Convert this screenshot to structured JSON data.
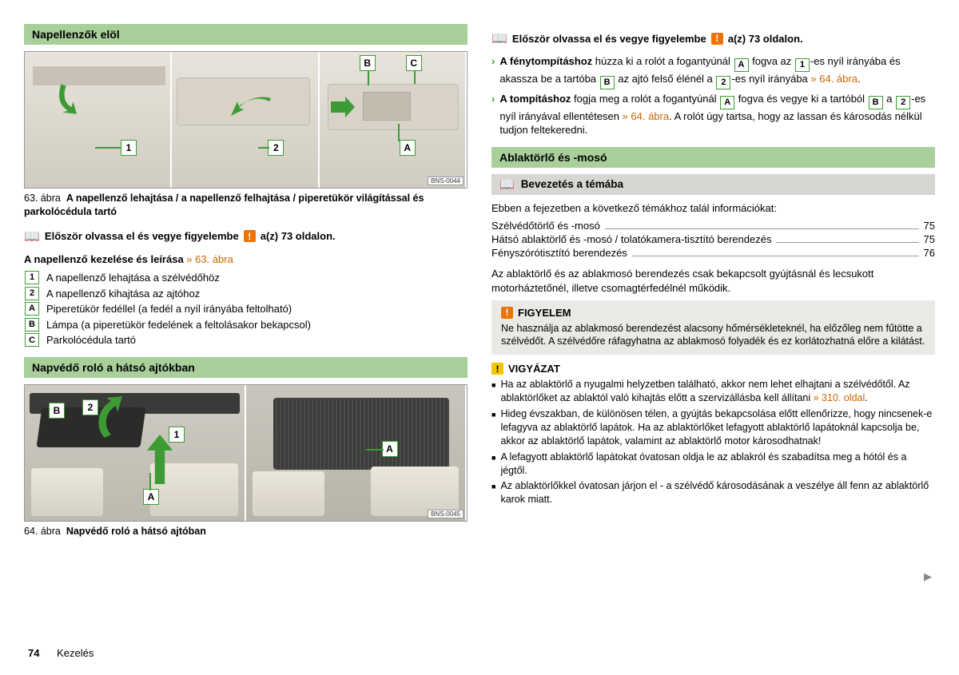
{
  "colors": {
    "section_bg": "#a9cf9b",
    "subhead_bg": "#d7d6d3",
    "green": "#3d9b35",
    "orange_warn": "#ec7404",
    "yellow_caution": "#f3c500",
    "orange_ref": "#cc6600",
    "alert_bg": "#ebe9e5"
  },
  "left": {
    "section1_title": "Napellenzők elöl",
    "fig1": {
      "code": "BNS-0044",
      "callouts_p1": [
        "1"
      ],
      "callouts_p2": [
        "2"
      ],
      "callouts_p3": [
        "B",
        "C",
        "A"
      ]
    },
    "fig1_caption_prefix": "63. ábra",
    "fig1_caption_body": "A napellenző lehajtása / a napellenző felhajtása / piperetükör világítással és parkolócédula tartó",
    "read_first": {
      "prefix": "Először olvassa el és vegye figyelembe",
      "suffix": "a(z) 73 oldalon."
    },
    "legend_title_plain": "A napellenző kezelése és leírása ",
    "legend_title_ref": "» 63. ábra",
    "legend": [
      {
        "k": "1",
        "t": "A napellenző lehajtása a szélvédőhöz"
      },
      {
        "k": "2",
        "t": "A napellenző kihajtása az ajtóhoz"
      },
      {
        "k": "A",
        "t": "Piperetükör fedéllel (a fedél a nyíl irányába feltolható)"
      },
      {
        "k": "B",
        "t": "Lámpa (a piperetükör fedelének a feltolásakor bekapcsol)"
      },
      {
        "k": "C",
        "t": "Parkolócédula tartó"
      }
    ],
    "section2_title": "Napvédő roló a hátsó ajtókban",
    "fig2": {
      "code": "BNS-0045",
      "callouts_left": [
        "B",
        "2",
        "1",
        "A"
      ],
      "callouts_right": [
        "A"
      ]
    },
    "fig2_caption_prefix": "64. ábra",
    "fig2_caption_body": "Napvédő roló a hátsó ajtóban"
  },
  "right": {
    "read_first": {
      "prefix": "Először olvassa el és vegye figyelembe",
      "suffix": "a(z) 73 oldalon."
    },
    "bullets": [
      {
        "parts": [
          {
            "t": "A ",
            "b": true
          },
          {
            "t": "fénytompításhoz",
            "b": true
          },
          {
            "t": " húzza ki a rolót a fogantyúnál "
          },
          {
            "key": "A"
          },
          {
            "t": " fogva az "
          },
          {
            "key": "1"
          },
          {
            "t": "-es nyíl irányába és akassza be a tartóba "
          },
          {
            "key": "B"
          },
          {
            "t": " az ajtó felső élénél a "
          },
          {
            "key": "2"
          },
          {
            "t": "-es nyíl irányába "
          },
          {
            "ref": "» 64. ábra"
          },
          {
            "t": "."
          }
        ]
      },
      {
        "parts": [
          {
            "t": "A ",
            "b": true
          },
          {
            "t": "tompításhoz",
            "b": true
          },
          {
            "t": " fogja meg a rolót a fogantyúnál "
          },
          {
            "key": "A"
          },
          {
            "t": " fogva és vegye ki a tartóból "
          },
          {
            "key": "B"
          },
          {
            "t": " a "
          },
          {
            "key": "2"
          },
          {
            "t": "-es nyíl irányával ellentétesen "
          },
          {
            "ref": "» 64. ábra"
          },
          {
            "t": ". A rolót úgy tartsa, hogy az lassan és károsodás nélkül tudjon feltekeredni."
          }
        ]
      }
    ],
    "section_title": "Ablaktörlő és -mosó",
    "sub_title": "Bevezetés a témába",
    "toc_intro": "Ebben a fejezetben a következő témákhoz talál információkat:",
    "toc": [
      {
        "label": "Szélvédőtörlő és -mosó",
        "pg": "75"
      },
      {
        "label": "Hátsó ablaktörlő és -mosó / tolatókamera-tisztító berendezés",
        "pg": "75"
      },
      {
        "label": "Fényszórótisztító berendezés",
        "pg": "76"
      }
    ],
    "toc_note": "Az ablaktörlő és az ablakmosó berendezés csak bekapcsolt gyújtásnál és lecsukott motorháztetőnél, illetve csomagtérfedélnél működik.",
    "figyelem": {
      "title": "FIGYELEM",
      "body": "Ne használja az ablakmosó berendezést alacsony hőmérsékleteknél, ha előzőleg nem fűtötte a szélvédőt. A szélvédőre ráfagyhatna az ablakmosó folyadék és ez korlátozhatná előre a kilátást."
    },
    "vigyazat": {
      "title": "VIGYÁZAT",
      "items": [
        {
          "pre": "Ha az ablaktörlő a nyugalmi helyzetben található, akkor nem lehet elhajtani a szélvédőtől. Az ablaktörlőket az ablaktól való kihajtás előtt a szervizállásba kell állítani ",
          "ref": "» 310. oldal",
          "post": "."
        },
        {
          "pre": "Hideg évszakban, de különösen télen, a gyújtás bekapcsolása előtt ellenőrizze, hogy nincsenek-e lefagyva az ablaktörlő lapátok. Ha az ablaktörlőket lefagyott ablaktörlő lapátoknál kapcsolja be, akkor az ablaktörlő lapátok, valamint az ablaktörlő motor károsodhatnak!"
        },
        {
          "pre": "A lefagyott ablaktörlő lapátokat óvatosan oldja le az ablakról és szabadítsa meg a hótól és a jégtől."
        },
        {
          "pre": "Az ablaktörlőkkel óvatosan járjon el - a szélvédő károsodásának a veszélye áll fenn az ablaktörlő karok miatt."
        }
      ]
    }
  },
  "footer": {
    "page": "74",
    "label": "Kezelés"
  }
}
